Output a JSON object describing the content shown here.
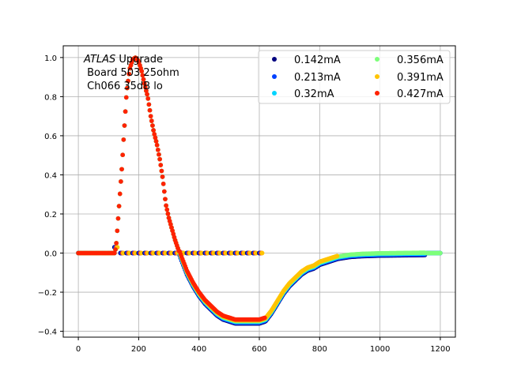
{
  "chart_data": {
    "type": "scatter",
    "annotation": {
      "italic": "ATLAS",
      "rest": " Upgrade",
      "line2": " Board 503 25ohm",
      "line3": " Ch066 35dB lo"
    },
    "xlim": [
      -50,
      1250
    ],
    "ylim": [
      -0.43,
      1.06
    ],
    "xticks": [
      0,
      200,
      400,
      600,
      800,
      1000,
      1200
    ],
    "yticks": [
      -0.4,
      -0.2,
      0.0,
      0.2,
      0.4,
      0.6,
      0.8,
      1.0
    ],
    "grid": true,
    "legend_placement": "top-right",
    "legend_columns": 2,
    "pulse_shape": {
      "x": [
        0,
        120,
        125,
        135,
        145,
        150,
        160,
        170,
        180,
        190,
        200,
        210,
        220,
        230,
        240,
        250,
        260,
        270,
        280,
        290,
        300,
        320,
        340,
        360,
        380,
        400,
        420,
        440,
        460,
        480,
        500,
        520,
        540,
        560,
        580,
        600,
        620,
        640,
        660,
        680,
        700,
        720,
        740,
        760,
        780,
        800,
        820,
        840,
        860,
        880,
        900,
        920,
        940,
        960,
        980,
        1000,
        1050,
        1100,
        1150,
        1200
      ],
      "y": [
        0.0,
        0.0,
        0.03,
        0.24,
        0.45,
        0.58,
        0.82,
        0.94,
        0.99,
        1.0,
        0.98,
        0.93,
        0.86,
        0.8,
        0.7,
        0.62,
        0.56,
        0.48,
        0.38,
        0.25,
        0.18,
        0.07,
        -0.02,
        -0.1,
        -0.16,
        -0.21,
        -0.25,
        -0.28,
        -0.31,
        -0.33,
        -0.34,
        -0.35,
        -0.35,
        -0.35,
        -0.35,
        -0.35,
        -0.34,
        -0.3,
        -0.25,
        -0.2,
        -0.16,
        -0.13,
        -0.1,
        -0.08,
        -0.07,
        -0.05,
        -0.04,
        -0.03,
        -0.02,
        -0.015,
        -0.01,
        -0.008,
        -0.006,
        -0.005,
        -0.004,
        -0.003,
        -0.002,
        -0.001,
        0.0,
        0.0
      ]
    },
    "series": [
      {
        "name": "0.142mA",
        "color": "#00007f",
        "x_range": [
          0,
          1200
        ],
        "peak_scale": 1.0
      },
      {
        "name": "0.213mA",
        "color": "#0040ff",
        "x_range": [
          0,
          1200
        ],
        "peak_scale": 1.0
      },
      {
        "name": "0.32mA",
        "color": "#00d4ff",
        "x_range": [
          0,
          1200
        ],
        "peak_scale": 1.0
      },
      {
        "name": "0.356mA",
        "color": "#7dff7a",
        "x_range": [
          0,
          1200
        ],
        "peak_scale": 1.0
      },
      {
        "name": "0.391mA",
        "color": "#ffc400",
        "x_range": [
          0,
          860
        ],
        "peak_scale": 1.0
      },
      {
        "name": "0.427mA",
        "color": "#ff2200",
        "x_range": [
          0,
          620
        ],
        "peak_scale": 1.0
      }
    ]
  }
}
